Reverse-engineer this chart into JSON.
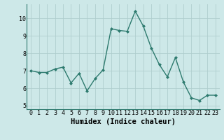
{
  "x": [
    0,
    1,
    2,
    3,
    4,
    5,
    6,
    7,
    8,
    9,
    10,
    11,
    12,
    13,
    14,
    15,
    16,
    17,
    18,
    19,
    20,
    21,
    22,
    23
  ],
  "y": [
    7.0,
    6.9,
    6.9,
    7.1,
    7.2,
    6.3,
    6.85,
    5.85,
    6.55,
    7.05,
    9.4,
    9.3,
    9.25,
    10.4,
    9.55,
    8.3,
    7.35,
    6.65,
    7.75,
    6.35,
    5.45,
    5.3,
    5.6,
    5.6
  ],
  "line_color": "#2d7a6e",
  "marker": "D",
  "marker_size": 2.0,
  "bg_color": "#cde8e8",
  "grid_color": "#b0cece",
  "xlabel": "Humidex (Indice chaleur)",
  "xlabel_fontsize": 7.5,
  "ylim": [
    4.8,
    10.8
  ],
  "xlim": [
    -0.5,
    23.5
  ],
  "yticks": [
    5,
    6,
    7,
    8,
    9,
    10
  ],
  "xticks": [
    0,
    1,
    2,
    3,
    4,
    5,
    6,
    7,
    8,
    9,
    10,
    11,
    12,
    13,
    14,
    15,
    16,
    17,
    18,
    19,
    20,
    21,
    22,
    23
  ],
  "tick_fontsize": 6.0,
  "linewidth": 1.0
}
